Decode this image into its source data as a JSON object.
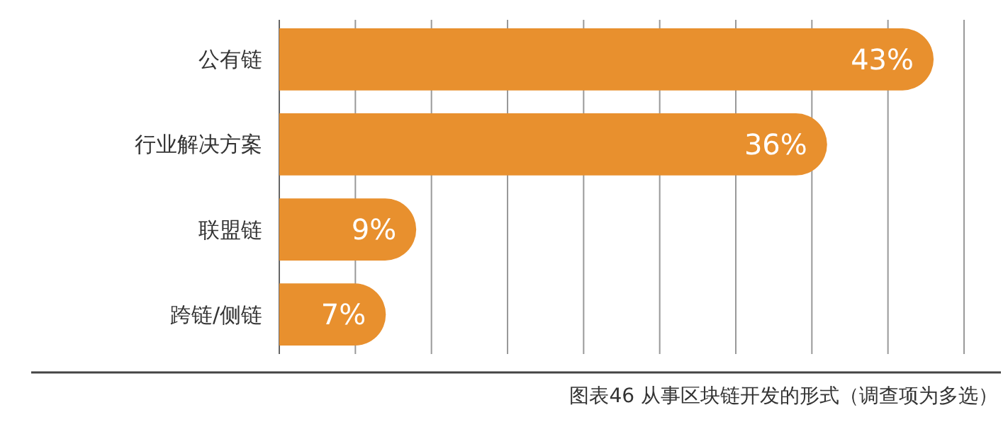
{
  "chart_data": {
    "type": "bar",
    "orientation": "horizontal",
    "categories": [
      "公有链",
      "行业解决方案",
      "联盟链",
      "跨链/侧链"
    ],
    "values": [
      43,
      36,
      9,
      7
    ],
    "color": "#e8902e",
    "data_labels": true,
    "value_labels": [
      "43%",
      "36%",
      "9%",
      "7%"
    ],
    "xlim": [
      0,
      45
    ],
    "xticks": [
      {
        "value": 0,
        "label": null
      },
      {
        "value": 5,
        "label": null
      },
      {
        "value": 10,
        "label": null
      },
      {
        "value": 15,
        "label": null
      },
      {
        "value": 20,
        "label": null
      },
      {
        "value": 25,
        "label": null
      },
      {
        "value": 30,
        "label": null
      },
      {
        "value": 35,
        "label": null
      },
      {
        "value": 40,
        "label": null
      },
      {
        "value": 45,
        "label": null
      }
    ],
    "grid": "x",
    "tick_labels": "y",
    "annotations": [
      "图表46  从事区块链开发的形式（调查项为多选）"
    ]
  }
}
